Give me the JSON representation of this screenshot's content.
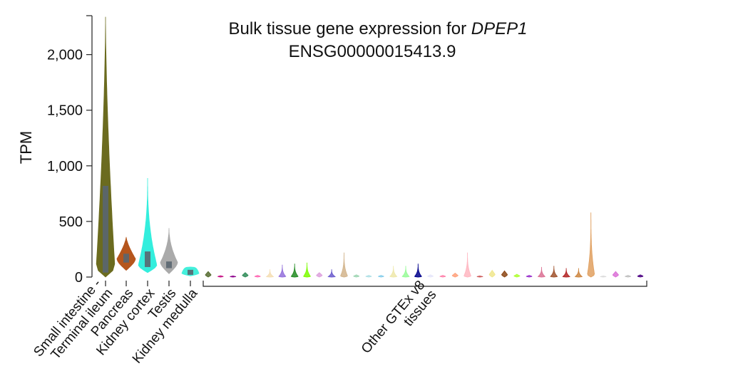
{
  "chart_data": {
    "type": "violin",
    "title": "Bulk tissue gene expression for",
    "title_gene": "DPEP1",
    "subtitle": "ENSG00000015413.9",
    "ylabel": "TPM",
    "ylim": [
      0,
      2350
    ],
    "yticks": [
      {
        "value": 0,
        "label": "0"
      },
      {
        "value": 500,
        "label": "500"
      },
      {
        "value": 1000,
        "label": "1,000"
      },
      {
        "value": 1500,
        "label": "1,500"
      },
      {
        "value": 2000,
        "label": "2,000"
      }
    ],
    "highlighted": [
      {
        "label": "Small intestine - Terminal ileum",
        "label_lines": [
          "Small intestine -",
          "Terminal ileum"
        ],
        "color": "#6b6b1f",
        "min": 0,
        "max": 2340,
        "q1": 40,
        "q3": 820,
        "median": 290
      },
      {
        "label": "Pancreas",
        "label_lines": [
          "Pancreas"
        ],
        "color": "#b5561d",
        "min": 60,
        "max": 360,
        "q1": 130,
        "q3": 210,
        "median": 170
      },
      {
        "label": "Kidney cortex",
        "label_lines": [
          "Kidney cortex"
        ],
        "color": "#33eedd",
        "min": 40,
        "max": 890,
        "q1": 90,
        "q3": 230,
        "median": 150
      },
      {
        "label": "Testis",
        "label_lines": [
          "Testis"
        ],
        "color": "#aaaaaa",
        "min": 30,
        "max": 440,
        "q1": 80,
        "q3": 140,
        "median": 110
      },
      {
        "label": "Kidney medulla",
        "label_lines": [
          "Kidney medulla"
        ],
        "color": "#44f0dc",
        "min": 10,
        "max": 90,
        "q1": 20,
        "q3": 65,
        "median": 45
      }
    ],
    "other_group_label_lines": [
      "Other GTEx v8",
      "tissues"
    ],
    "others": [
      {
        "color": "#556b2f",
        "max": 50
      },
      {
        "color": "#c71585",
        "max": 12
      },
      {
        "color": "#8b008b",
        "max": 10
      },
      {
        "color": "#2e8b57",
        "max": 40
      },
      {
        "color": "#ff69b4",
        "max": 15
      },
      {
        "color": "#f5deb3",
        "max": 70
      },
      {
        "color": "#9370db",
        "max": 110
      },
      {
        "color": "#228b22",
        "max": 120
      },
      {
        "color": "#7cfc00",
        "max": 130
      },
      {
        "color": "#dda0dd",
        "max": 40
      },
      {
        "color": "#6a5acd",
        "max": 70
      },
      {
        "color": "#d2b48c",
        "max": 220
      },
      {
        "color": "#a0d6b4",
        "max": 20
      },
      {
        "color": "#b0e0e6",
        "max": 15
      },
      {
        "color": "#87ceeb",
        "max": 15
      },
      {
        "color": "#eee8aa",
        "max": 100
      },
      {
        "color": "#98fb98",
        "max": 100
      },
      {
        "color": "#00008b",
        "max": 120
      },
      {
        "color": "#e6e6fa",
        "max": 20
      },
      {
        "color": "#ff82ab",
        "max": 15
      },
      {
        "color": "#ffa07a",
        "max": 35
      },
      {
        "color": "#ffb6c1",
        "max": 220
      },
      {
        "color": "#cd5c5c",
        "max": 10
      },
      {
        "color": "#f0e68c",
        "max": 60
      },
      {
        "color": "#8b4513",
        "max": 55
      },
      {
        "color": "#adff2f",
        "max": 25
      },
      {
        "color": "#9932cc",
        "max": 15
      },
      {
        "color": "#db7093",
        "max": 90
      },
      {
        "color": "#a0522d",
        "max": 100
      },
      {
        "color": "#b22222",
        "max": 80
      },
      {
        "color": "#cd853f",
        "max": 80
      },
      {
        "color": "#e0a060",
        "max": 580
      },
      {
        "color": "#dcdcdc",
        "max": 10
      },
      {
        "color": "#da70d6",
        "max": 50
      },
      {
        "color": "#c0c0c0",
        "max": 15
      },
      {
        "color": "#4b0082",
        "max": 20
      }
    ]
  }
}
